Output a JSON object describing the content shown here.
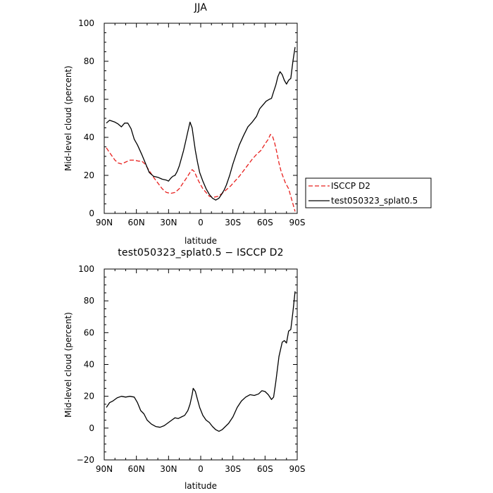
{
  "chart_data": [
    {
      "type": "line",
      "title": "JJA",
      "xlabel": "latitude",
      "ylabel": "Mid-level cloud (percent)",
      "xlim": [
        90,
        -90
      ],
      "ylim": [
        0,
        100
      ],
      "xticks": [
        90,
        60,
        30,
        0,
        -30,
        -60,
        -90
      ],
      "xtick_labels": [
        "90N",
        "60N",
        "30N",
        "0",
        "30S",
        "60S",
        "90S"
      ],
      "yticks": [
        0,
        20,
        40,
        60,
        80,
        100
      ],
      "ytick_labels": [
        "0",
        "20",
        "40",
        "60",
        "80",
        "100"
      ],
      "legend": "right, outside plot",
      "series": [
        {
          "name": "ISCCP D2",
          "color": "#e8201e",
          "style": "dashed",
          "x": [
            88,
            85,
            80,
            77,
            74,
            70,
            66,
            62,
            58,
            55,
            52,
            48,
            44,
            40,
            36,
            32,
            28,
            24,
            20,
            17,
            14,
            10,
            8,
            6,
            4,
            2,
            0,
            -2,
            -5,
            -8,
            -12,
            -16,
            -20,
            -24,
            -28,
            -32,
            -36,
            -40,
            -44,
            -48,
            -52,
            -56,
            -60,
            -63,
            -65,
            -67,
            -69,
            -71,
            -73,
            -75,
            -77,
            -79,
            -82,
            -85,
            -88
          ],
          "y": [
            34.5,
            32,
            28,
            26.5,
            26,
            27,
            28,
            28,
            27.5,
            27.5,
            26,
            22.5,
            19,
            16,
            13,
            11,
            10.5,
            11,
            13,
            15.5,
            18,
            21.5,
            23,
            22,
            19.5,
            17,
            15,
            13,
            11,
            9,
            8.5,
            9,
            10.5,
            12.5,
            14.5,
            17,
            19.5,
            22.5,
            25.5,
            28.5,
            31,
            33,
            36.5,
            39,
            41.5,
            40.5,
            37,
            32,
            26.5,
            22,
            19,
            16,
            13,
            7,
            1
          ]
        },
        {
          "name": "test050323_splat0.5",
          "color": "#000000",
          "style": "solid",
          "x": [
            88,
            85,
            80,
            77,
            74,
            71,
            68,
            65,
            62,
            59,
            55,
            52,
            48,
            44,
            40,
            36,
            32,
            30,
            28,
            26,
            24,
            22,
            20,
            18,
            16,
            14,
            12,
            10,
            8,
            7,
            5,
            3,
            1,
            -2,
            -5,
            -8,
            -11,
            -14,
            -17,
            -20,
            -22,
            -24,
            -27,
            -30,
            -33,
            -36,
            -40,
            -44,
            -48,
            -52,
            -55,
            -58,
            -61,
            -64,
            -66,
            -68,
            -70,
            -72,
            -74,
            -76,
            -78,
            -80,
            -82,
            -84,
            -86,
            -88
          ],
          "y": [
            47.5,
            49,
            48,
            47,
            45.5,
            47.5,
            47.5,
            44.5,
            39,
            36,
            31,
            27,
            21.5,
            19.5,
            19,
            18,
            17.5,
            17,
            18.5,
            19.5,
            20,
            22,
            25,
            29,
            33,
            38,
            43,
            48,
            45,
            41,
            33,
            27,
            21.5,
            17,
            13,
            10,
            8,
            7,
            8,
            10.5,
            12.5,
            15,
            20,
            26,
            31,
            36,
            41,
            45.5,
            48,
            51,
            55,
            57,
            59,
            60,
            60.5,
            64,
            67.5,
            72,
            74.5,
            73,
            70,
            68,
            70,
            71,
            80,
            87.5
          ]
        }
      ]
    },
    {
      "type": "line",
      "title": "test050323_splat0.5 − ISCCP D2",
      "xlabel": "latitude",
      "ylabel": "Mid-level cloud (percent)",
      "xlim": [
        90,
        -90
      ],
      "ylim": [
        -20,
        100
      ],
      "xticks": [
        90,
        60,
        30,
        0,
        -30,
        -60,
        -90
      ],
      "xtick_labels": [
        "90N",
        "60N",
        "30N",
        "0",
        "30S",
        "60S",
        "90S"
      ],
      "yticks": [
        -20,
        0,
        20,
        40,
        60,
        80,
        100
      ],
      "ytick_labels": [
        "−20",
        "0",
        "20",
        "40",
        "60",
        "80",
        "100"
      ],
      "series": [
        {
          "color": "#000000",
          "style": "solid",
          "x": [
            88,
            85,
            82,
            78,
            74,
            70,
            66,
            62,
            59,
            56,
            53,
            50,
            46,
            42,
            38,
            34,
            30,
            27,
            24,
            21,
            18,
            15,
            12,
            10,
            8,
            7,
            5,
            3,
            1,
            -2,
            -5,
            -8,
            -11,
            -14,
            -17,
            -20,
            -23,
            -26,
            -30,
            -34,
            -38,
            -42,
            -46,
            -50,
            -54,
            -57,
            -60,
            -63,
            -66,
            -68,
            -70,
            -73,
            -76,
            -78,
            -80,
            -82,
            -84,
            -86,
            -88
          ],
          "y": [
            13,
            16,
            17,
            19,
            20,
            19.5,
            20,
            19.5,
            16,
            11,
            9,
            5,
            2.5,
            1,
            0.5,
            1.5,
            3.5,
            5,
            6.5,
            6,
            7,
            8,
            11,
            15,
            21,
            25,
            23,
            18,
            13,
            8,
            5,
            3.5,
            1,
            -1,
            -2,
            -1,
            1,
            3,
            7,
            13,
            17,
            19.5,
            21,
            20.5,
            21.5,
            23.5,
            23,
            21,
            18,
            19.5,
            29,
            45,
            54,
            55,
            53.5,
            61,
            62,
            73,
            86
          ]
        }
      ]
    }
  ]
}
